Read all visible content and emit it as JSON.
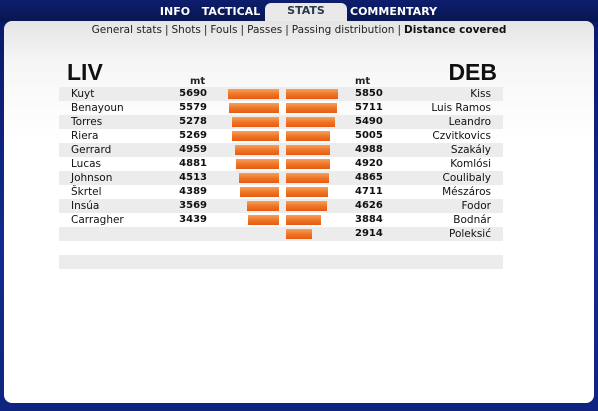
{
  "tabs": [
    {
      "label": "INFO",
      "active": false
    },
    {
      "label": "TACTICAL",
      "active": false
    },
    {
      "label": "STATS",
      "active": true
    },
    {
      "label": "COMMENTARY",
      "active": false
    }
  ],
  "subnav": [
    {
      "label": "General stats",
      "active": false
    },
    {
      "label": "Shots",
      "active": false
    },
    {
      "label": "Fouls",
      "active": false
    },
    {
      "label": "Passes",
      "active": false
    },
    {
      "label": "Passing distribution",
      "active": false
    },
    {
      "label": "Distance covered",
      "active": true
    }
  ],
  "home": {
    "name": "LIV",
    "unit": "mt"
  },
  "away": {
    "name": "DEB",
    "unit": "mt"
  },
  "bar_scale_max": 5850,
  "rows": [
    {
      "left_name": "Kuyt",
      "left_value": 5690,
      "right_value": 5850,
      "right_name": "Kiss"
    },
    {
      "left_name": "Benayoun",
      "left_value": 5579,
      "right_value": 5711,
      "right_name": "Luis Ramos"
    },
    {
      "left_name": "Torres",
      "left_value": 5278,
      "right_value": 5490,
      "right_name": "Leandro"
    },
    {
      "left_name": "Riera",
      "left_value": 5269,
      "right_value": 5005,
      "right_name": "Czvitkovics"
    },
    {
      "left_name": "Gerrard",
      "left_value": 4959,
      "right_value": 4988,
      "right_name": "Szakály"
    },
    {
      "left_name": "Lucas",
      "left_value": 4881,
      "right_value": 4920,
      "right_name": "Komlósi"
    },
    {
      "left_name": "Johnson",
      "left_value": 4513,
      "right_value": 4865,
      "right_name": "Coulibaly"
    },
    {
      "left_name": "Škrtel",
      "left_value": 4389,
      "right_value": 4711,
      "right_name": "Mészáros"
    },
    {
      "left_name": "Insúa",
      "left_value": 3569,
      "right_value": 4626,
      "right_name": "Fodor"
    },
    {
      "left_name": "Carragher",
      "left_value": 3439,
      "right_value": 3884,
      "right_name": "Bodnár"
    },
    {
      "left_name": "",
      "left_value": null,
      "right_value": 2914,
      "right_name": "Poleksić"
    }
  ]
}
